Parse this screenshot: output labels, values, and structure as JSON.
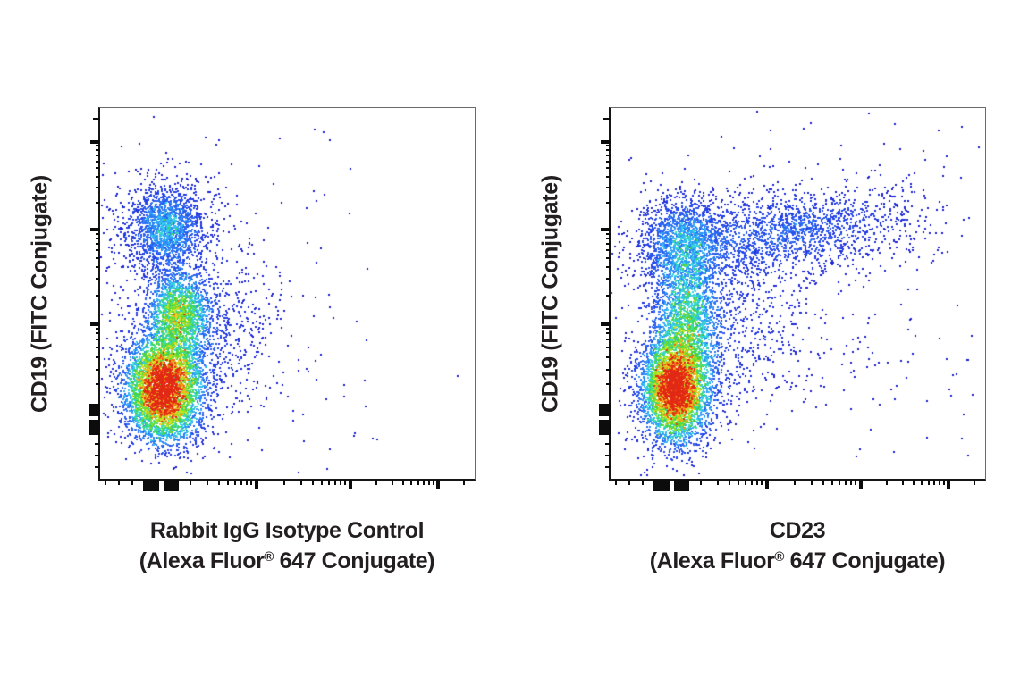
{
  "figure": {
    "background": "#ffffff",
    "text_color": "#231f20"
  },
  "chart_data": {
    "type": "scatter",
    "subtype": "flow-cytometry-pseudocolor-density",
    "grid": "off",
    "legend": "none",
    "axis_tick_labels": "none (unlabeled biexponential/logicle axes, 3 log decades plus compressed linear zero region)",
    "colormap_stops": [
      [
        0.0,
        "#1919CD"
      ],
      [
        0.12,
        "#284BEB"
      ],
      [
        0.25,
        "#2D96FA"
      ],
      [
        0.33,
        "#32CDF0"
      ],
      [
        0.4,
        "#3CE1B4"
      ],
      [
        0.5,
        "#3CD23C"
      ],
      [
        0.62,
        "#8CE123"
      ],
      [
        0.72,
        "#E1E628"
      ],
      [
        0.82,
        "#FAA019"
      ],
      [
        0.92,
        "#F05014"
      ],
      [
        1.0,
        "#E12814"
      ]
    ],
    "render": {
      "gamma": 0.75,
      "jitter": 0.35,
      "dot_size": 2,
      "seeds": [
        42,
        1337
      ]
    },
    "panels": [
      {
        "id": "isotype-control",
        "ylabel": "CD19 (FITC Conjugate)",
        "xlabel_line1": "Rabbit IgG Isotype Control",
        "xlabel_line2_pre": "(Alexa Fluor",
        "xlabel_line2_reg": "®",
        "xlabel_line2_post": " 647 Conjugate)",
        "x_scale": "biexponential",
        "y_scale": "biexponential",
        "populations": [
          {
            "name": "main-dense-core",
            "fx": 0.168,
            "fy": 0.251,
            "sx": 0.05,
            "sy": 0.065,
            "count": 4000,
            "peak": 1.0
          },
          {
            "name": "core-lower-tail",
            "fx": 0.178,
            "fy": 0.163,
            "sx": 0.052,
            "sy": 0.048,
            "count": 700,
            "peak": 0.15
          },
          {
            "name": "mid-smear",
            "fx": 0.209,
            "fy": 0.445,
            "sx": 0.04,
            "sy": 0.055,
            "count": 1500,
            "peak": 0.4
          },
          {
            "name": "mid-diffuse-right",
            "fx": 0.237,
            "fy": 0.402,
            "sx": 0.095,
            "sy": 0.108,
            "count": 1000,
            "peak": 0.05
          },
          {
            "name": "upper-cluster",
            "fx": 0.175,
            "fy": 0.677,
            "sx": 0.047,
            "sy": 0.053,
            "count": 1300,
            "peak": 0.14
          },
          {
            "name": "upper-halo",
            "fx": 0.177,
            "fy": 0.672,
            "sx": 0.09,
            "sy": 0.08,
            "count": 600,
            "peak": 0.03
          },
          {
            "name": "sparse-halo",
            "fx": 0.296,
            "fy": 0.426,
            "sx": 0.17,
            "sy": 0.2,
            "count": 200,
            "peak": 0.004
          },
          {
            "name": "background-sparse",
            "dist": "uniform",
            "x0": 0.03,
            "x1": 0.75,
            "y0": 0.04,
            "y1": 0.96,
            "count": 70,
            "peak": 0
          }
        ],
        "outliers": [
          [
            0.6,
            0.766
          ],
          [
            0.552,
            0.729
          ],
          [
            0.955,
            0.276
          ]
        ]
      },
      {
        "id": "cd23",
        "ylabel": "CD19 (FITC Conjugate)",
        "xlabel_line1": "CD23",
        "xlabel_line2_pre": "(Alexa Fluor",
        "xlabel_line2_reg": "®",
        "xlabel_line2_post": " 647 Conjugate)",
        "x_scale": "biexponential",
        "y_scale": "biexponential",
        "populations": [
          {
            "name": "main-dense-core",
            "fx": 0.173,
            "fy": 0.242,
            "sx": 0.042,
            "sy": 0.067,
            "count": 3800,
            "peak": 1.0
          },
          {
            "name": "core-halo",
            "fx": 0.18,
            "fy": 0.23,
            "sx": 0.062,
            "sy": 0.09,
            "count": 900,
            "peak": 0.12
          },
          {
            "name": "vertical-arm",
            "fx": 0.204,
            "fy": 0.426,
            "sx": 0.047,
            "sy": 0.096,
            "count": 1700,
            "peak": 0.3
          },
          {
            "name": "upper-shoulder",
            "fx": 0.192,
            "fy": 0.636,
            "sx": 0.057,
            "sy": 0.065,
            "count": 1500,
            "peak": 0.15
          },
          {
            "name": "top-right-arm",
            "fx": 0.467,
            "fy": 0.665,
            "sx": 0.171,
            "sy": 0.053,
            "count": 1700,
            "peak": 0.08,
            "tilt": 0.11
          },
          {
            "name": "transition-diffuse",
            "fx": 0.318,
            "fy": 0.438,
            "sx": 0.13,
            "sy": 0.14,
            "count": 800,
            "peak": 0.03
          },
          {
            "name": "sparse-right",
            "fx": 0.614,
            "fy": 0.5,
            "sx": 0.2,
            "sy": 0.22,
            "count": 130,
            "peak": 0.004
          },
          {
            "name": "background-sparse",
            "dist": "uniform",
            "x0": 0.03,
            "x1": 0.97,
            "y0": 0.05,
            "y1": 0.96,
            "count": 90,
            "peak": 0
          }
        ],
        "outliers": [
          [
            0.964,
            0.385
          ],
          [
            0.794,
            0.402
          ],
          [
            0.207,
            0.873
          ]
        ]
      }
    ]
  }
}
